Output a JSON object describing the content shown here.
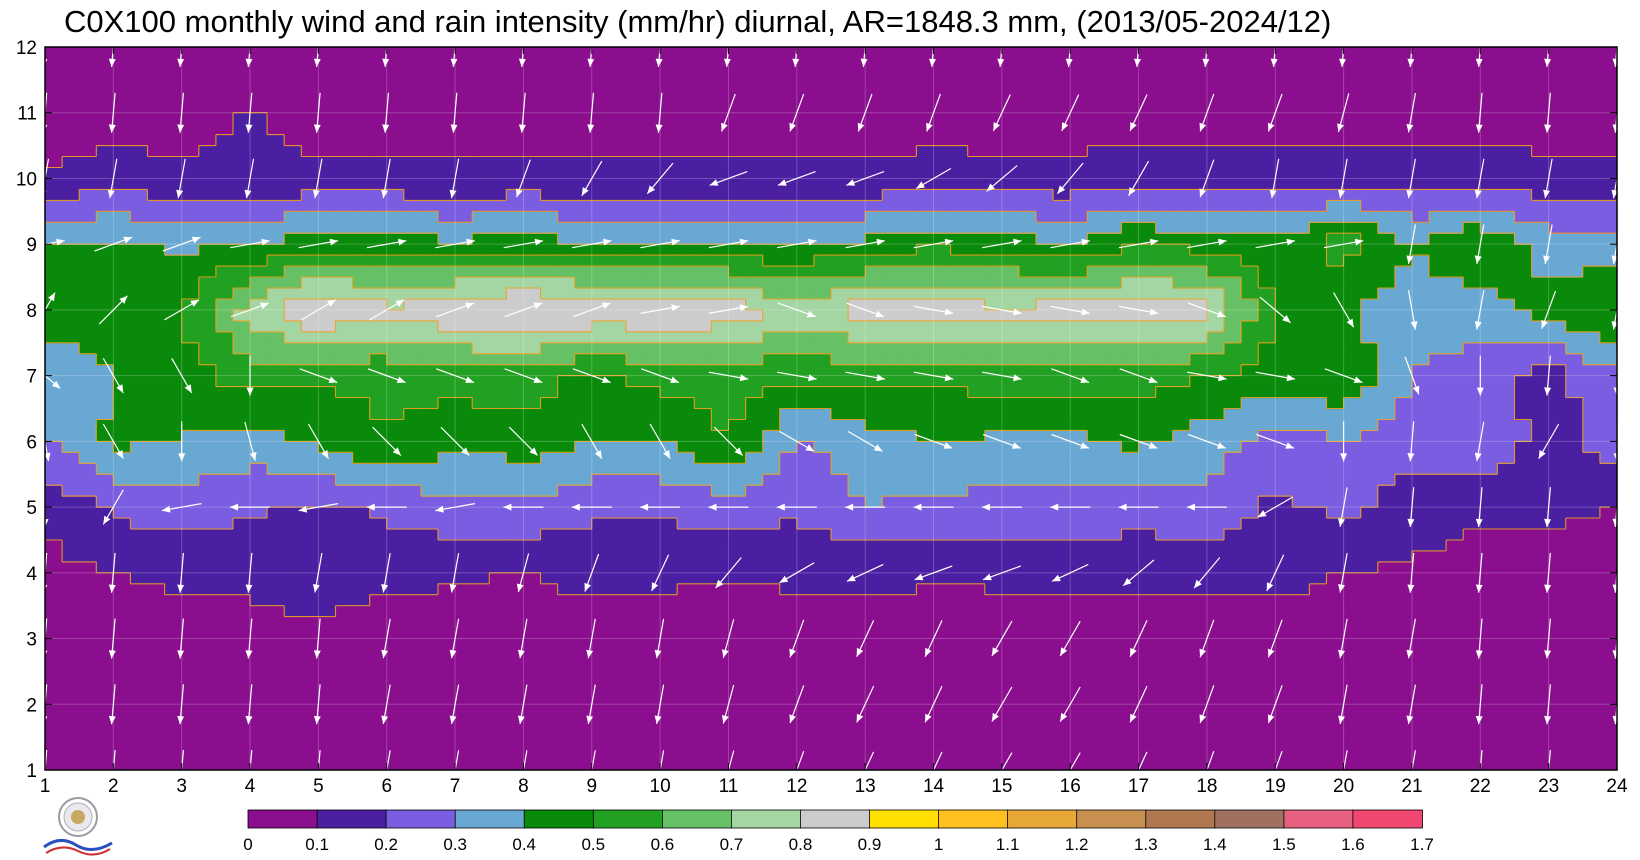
{
  "chart_data": {
    "type": "heatmap",
    "title": "C0X100 monthly wind and rain intensity (mm/hr) diurnal, AR=1848.3 mm, (2013/05-2024/12)",
    "x_ticks": [
      1,
      2,
      3,
      4,
      5,
      6,
      7,
      8,
      9,
      10,
      11,
      12,
      13,
      14,
      15,
      16,
      17,
      18,
      19,
      20,
      21,
      22,
      23,
      24
    ],
    "y_ticks": [
      1,
      2,
      3,
      4,
      5,
      6,
      7,
      8,
      9,
      10,
      11,
      12
    ],
    "xlim": [
      1,
      24
    ],
    "ylim": [
      1,
      12
    ],
    "x": [
      1,
      2,
      3,
      4,
      5,
      6,
      7,
      8,
      9,
      10,
      11,
      12,
      13,
      14,
      15,
      16,
      17,
      18,
      19,
      20,
      21,
      22,
      23,
      24
    ],
    "y": [
      1,
      2,
      3,
      4,
      5,
      6,
      7,
      8,
      9,
      10,
      11,
      12
    ],
    "z": [
      [
        0.03,
        0.03,
        0.03,
        0.03,
        0.03,
        0.03,
        0.03,
        0.03,
        0.03,
        0.03,
        0.03,
        0.03,
        0.03,
        0.03,
        0.03,
        0.03,
        0.03,
        0.03,
        0.03,
        0.03,
        0.03,
        0.03,
        0.03,
        0.03
      ],
      [
        0.04,
        0.04,
        0.04,
        0.04,
        0.04,
        0.04,
        0.04,
        0.04,
        0.04,
        0.04,
        0.04,
        0.04,
        0.04,
        0.04,
        0.04,
        0.04,
        0.04,
        0.04,
        0.04,
        0.04,
        0.04,
        0.04,
        0.04,
        0.04
      ],
      [
        0.05,
        0.05,
        0.05,
        0.07,
        0.08,
        0.05,
        0.05,
        0.05,
        0.05,
        0.05,
        0.05,
        0.05,
        0.05,
        0.05,
        0.05,
        0.05,
        0.05,
        0.05,
        0.07,
        0.05,
        0.05,
        0.05,
        0.05,
        0.05
      ],
      [
        0.07,
        0.1,
        0.12,
        0.12,
        0.15,
        0.13,
        0.11,
        0.1,
        0.13,
        0.12,
        0.11,
        0.12,
        0.13,
        0.11,
        0.12,
        0.12,
        0.12,
        0.13,
        0.12,
        0.1,
        0.08,
        0.06,
        0.05,
        0.06
      ],
      [
        0.12,
        0.22,
        0.25,
        0.22,
        0.18,
        0.22,
        0.28,
        0.28,
        0.22,
        0.22,
        0.25,
        0.22,
        0.3,
        0.27,
        0.27,
        0.27,
        0.25,
        0.28,
        0.18,
        0.22,
        0.15,
        0.12,
        0.12,
        0.1
      ],
      [
        0.3,
        0.42,
        0.4,
        0.35,
        0.42,
        0.5,
        0.42,
        0.45,
        0.4,
        0.4,
        0.5,
        0.28,
        0.35,
        0.4,
        0.38,
        0.38,
        0.42,
        0.35,
        0.25,
        0.3,
        0.25,
        0.3,
        0.15,
        0.25
      ],
      [
        0.32,
        0.4,
        0.45,
        0.55,
        0.52,
        0.52,
        0.55,
        0.55,
        0.48,
        0.53,
        0.55,
        0.52,
        0.55,
        0.52,
        0.55,
        0.55,
        0.55,
        0.5,
        0.45,
        0.5,
        0.3,
        0.25,
        0.15,
        0.3
      ],
      [
        0.45,
        0.48,
        0.5,
        0.75,
        0.92,
        0.82,
        0.9,
        0.93,
        0.9,
        0.9,
        0.88,
        0.75,
        0.85,
        0.85,
        0.82,
        0.85,
        0.88,
        0.85,
        0.5,
        0.4,
        0.35,
        0.35,
        0.45,
        0.5
      ],
      [
        0.4,
        0.42,
        0.38,
        0.4,
        0.45,
        0.45,
        0.42,
        0.45,
        0.4,
        0.4,
        0.4,
        0.4,
        0.42,
        0.48,
        0.45,
        0.4,
        0.5,
        0.45,
        0.42,
        0.55,
        0.4,
        0.5,
        0.35,
        0.35
      ],
      [
        0.1,
        0.15,
        0.12,
        0.12,
        0.12,
        0.12,
        0.12,
        0.12,
        0.12,
        0.12,
        0.12,
        0.12,
        0.12,
        0.14,
        0.13,
        0.13,
        0.16,
        0.14,
        0.14,
        0.16,
        0.14,
        0.15,
        0.13,
        0.12
      ],
      [
        0.05,
        0.05,
        0.05,
        0.11,
        0.05,
        0.05,
        0.05,
        0.05,
        0.05,
        0.05,
        0.05,
        0.05,
        0.05,
        0.05,
        0.05,
        0.05,
        0.05,
        0.05,
        0.05,
        0.05,
        0.05,
        0.05,
        0.05,
        0.05
      ],
      [
        0.03,
        0.03,
        0.03,
        0.03,
        0.03,
        0.03,
        0.03,
        0.03,
        0.03,
        0.03,
        0.03,
        0.03,
        0.03,
        0.03,
        0.03,
        0.03,
        0.03,
        0.03,
        0.03,
        0.03,
        0.03,
        0.03,
        0.03,
        0.03
      ]
    ],
    "wind_angle_deg": [
      [
        95,
        95,
        95,
        95,
        95,
        100,
        100,
        100,
        100,
        100,
        105,
        110,
        115,
        115,
        120,
        120,
        115,
        110,
        110,
        100,
        100,
        95,
        95,
        95
      ],
      [
        95,
        95,
        95,
        95,
        95,
        100,
        100,
        100,
        100,
        100,
        105,
        110,
        115,
        115,
        120,
        120,
        115,
        110,
        110,
        100,
        100,
        95,
        95,
        95
      ],
      [
        95,
        95,
        95,
        95,
        95,
        100,
        100,
        100,
        100,
        100,
        105,
        110,
        115,
        115,
        120,
        120,
        115,
        110,
        110,
        100,
        100,
        95,
        95,
        95
      ],
      [
        95,
        95,
        95,
        95,
        100,
        100,
        100,
        105,
        110,
        115,
        130,
        150,
        155,
        160,
        160,
        155,
        140,
        130,
        115,
        100,
        95,
        95,
        95,
        95
      ],
      [
        90,
        120,
        170,
        180,
        170,
        180,
        170,
        180,
        180,
        180,
        180,
        180,
        180,
        180,
        180,
        180,
        180,
        180,
        150,
        100,
        95,
        95,
        95,
        95
      ],
      [
        80,
        60,
        90,
        75,
        60,
        45,
        45,
        45,
        60,
        60,
        45,
        30,
        30,
        20,
        20,
        20,
        20,
        20,
        20,
        90,
        95,
        100,
        120,
        90
      ],
      [
        40,
        60,
        60,
        90,
        20,
        20,
        20,
        20,
        20,
        20,
        10,
        10,
        10,
        10,
        10,
        20,
        20,
        10,
        10,
        20,
        70,
        90,
        95,
        90
      ],
      [
        -60,
        -45,
        -30,
        -20,
        -30,
        -30,
        -20,
        -20,
        -20,
        -10,
        -10,
        20,
        20,
        10,
        10,
        10,
        10,
        20,
        40,
        60,
        80,
        100,
        110,
        100
      ],
      [
        -10,
        -20,
        -20,
        -10,
        -10,
        -10,
        -10,
        -10,
        -10,
        -10,
        -10,
        -10,
        -10,
        -10,
        -10,
        -10,
        -10,
        -10,
        -10,
        -10,
        100,
        100,
        100,
        100
      ],
      [
        100,
        100,
        100,
        100,
        100,
        100,
        100,
        110,
        120,
        130,
        160,
        160,
        160,
        150,
        140,
        130,
        120,
        110,
        100,
        100,
        100,
        100,
        100,
        100
      ],
      [
        95,
        95,
        95,
        95,
        95,
        95,
        95,
        95,
        95,
        95,
        110,
        110,
        110,
        110,
        115,
        115,
        115,
        110,
        110,
        105,
        100,
        95,
        95,
        95
      ],
      [
        95,
        95,
        95,
        95,
        95,
        95,
        95,
        95,
        95,
        95,
        95,
        95,
        95,
        95,
        95,
        95,
        95,
        95,
        95,
        95,
        95,
        95,
        95,
        95
      ]
    ],
    "colorbar": {
      "labels": [
        "0",
        "0.1",
        "0.2",
        "0.3",
        "0.4",
        "0.5",
        "0.6",
        "0.7",
        "0.8",
        "0.9",
        "1",
        "1.1",
        "1.2",
        "1.3",
        "1.4",
        "1.5",
        "1.6",
        "1.7"
      ],
      "colors": [
        "#8a0e8e",
        "#4b1fa1",
        "#7a5de0",
        "#6aa8d4",
        "#0a8a0a",
        "#22a022",
        "#66c066",
        "#a4d6a4",
        "#cccccc",
        "#ffe000",
        "#ffc020",
        "#e8a838",
        "#c89050",
        "#b07850",
        "#a07060",
        "#e86080",
        "#f04870",
        "#d8283c"
      ]
    },
    "contour_color": "#f0a020",
    "arrow_color": "#ffffff",
    "grid": true,
    "legend": "bottom"
  }
}
